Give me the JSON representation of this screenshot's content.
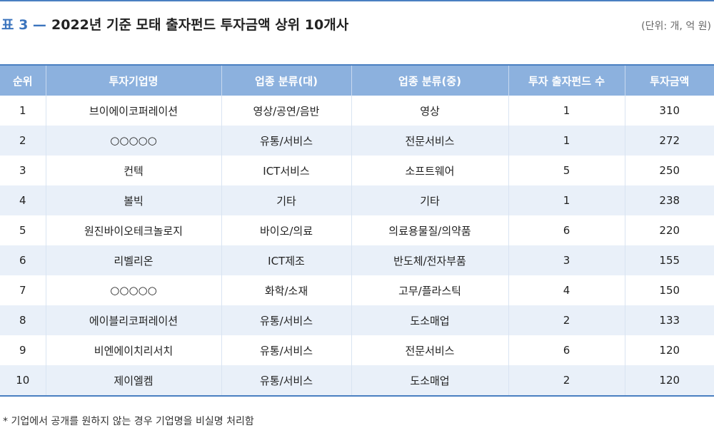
{
  "title": {
    "prefix": "표 3 —",
    "text": "2022년 기준 모태 출자펀드 투자금액 상위 10개사",
    "unit": "(단위: 개, 억 원)"
  },
  "table": {
    "headers": [
      "순위",
      "투자기업명",
      "업종 분류(대)",
      "업종 분류(중)",
      "투자 출자펀드 수",
      "투자금액"
    ],
    "rows": [
      [
        "1",
        "브이에이코퍼레이션",
        "영상/공연/음반",
        "영상",
        "1",
        "310"
      ],
      [
        "2",
        "○○○○○",
        "유통/서비스",
        "전문서비스",
        "1",
        "272"
      ],
      [
        "3",
        "컨텍",
        "ICT서비스",
        "소프트웨어",
        "5",
        "250"
      ],
      [
        "4",
        "볼빅",
        "기타",
        "기타",
        "1",
        "238"
      ],
      [
        "5",
        "원진바이오테크놀로지",
        "바이오/의료",
        "의료용물질/의약품",
        "6",
        "220"
      ],
      [
        "6",
        "리벨리온",
        "ICT제조",
        "반도체/전자부품",
        "3",
        "155"
      ],
      [
        "7",
        "○○○○○",
        "화학/소재",
        "고무/플라스틱",
        "4",
        "150"
      ],
      [
        "8",
        "에이블리코퍼레이션",
        "유통/서비스",
        "도소매업",
        "2",
        "133"
      ],
      [
        "9",
        "비엔에이치리서치",
        "유통/서비스",
        "전문서비스",
        "6",
        "120"
      ],
      [
        "10",
        "제이엘켐",
        "유통/서비스",
        "도소매업",
        "2",
        "120"
      ]
    ]
  },
  "footnote": "* 기업에서 공개를 원하지 않는 경우 기업명을 비실명 처리함",
  "colors": {
    "accent": "#3b74bd",
    "header_bg": "#8cb1de",
    "stripe_bg": "#e9f0f9"
  }
}
